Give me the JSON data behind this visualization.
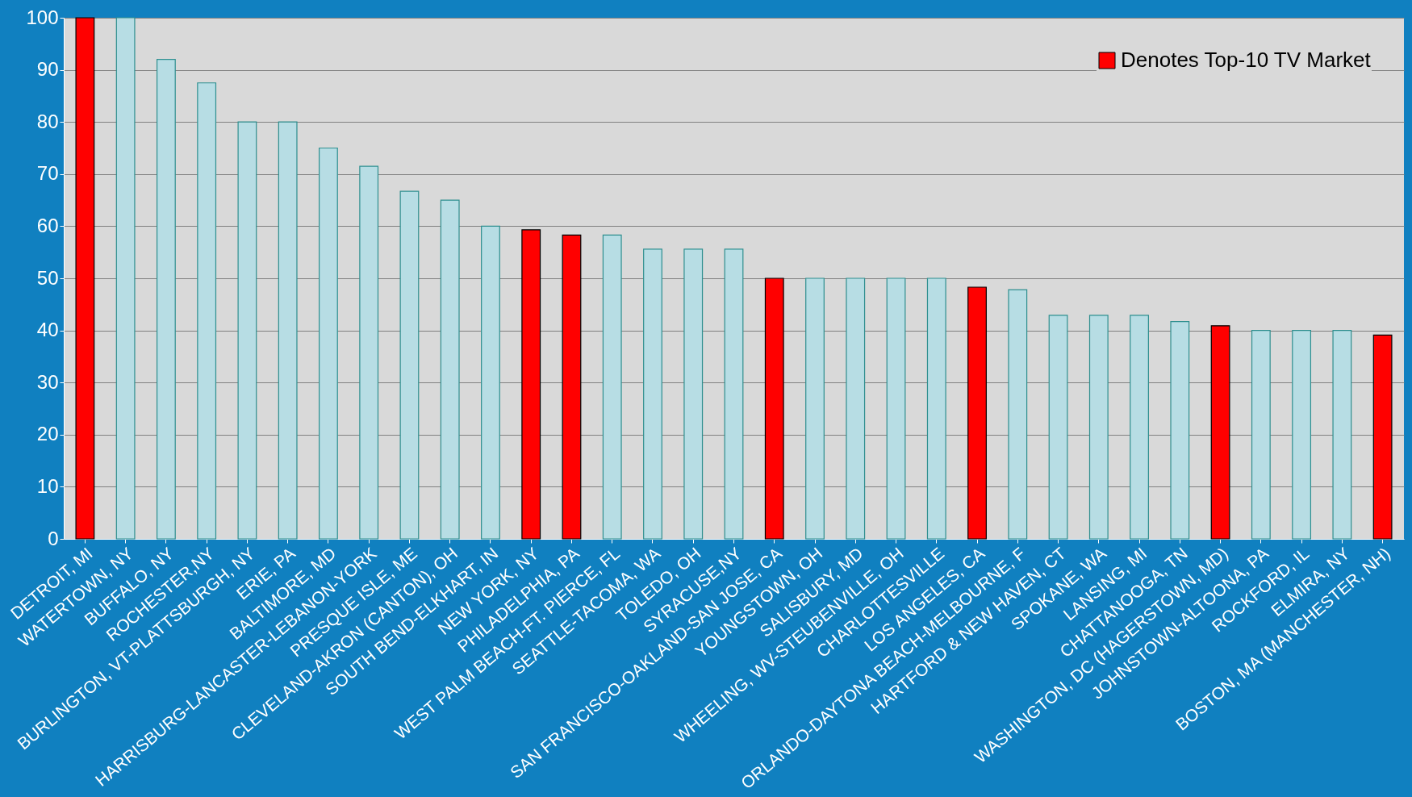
{
  "chart_data": {
    "type": "bar",
    "categories": [
      "DETROIT, MI",
      "WATERTOWN, NY",
      "BUFFALO, NY",
      "ROCHESTER,NY",
      "BURLINGTON, VT-PLATTSBURGH, NY",
      "ERIE, PA",
      "BALTIMORE, MD",
      "HARRISBURG-LANCASTER-LEBANON-YORK",
      "PRESQUE ISLE, ME",
      "CLEVELAND-AKRON (CANTON), OH",
      "SOUTH BEND-ELKHART, IN",
      "NEW YORK, NY",
      "PHILADELPHIA, PA",
      "WEST PALM BEACH-FT. PIERCE, FL",
      "SEATTLE-TACOMA, WA",
      "TOLEDO, OH",
      "SYRACUSE,NY",
      "SAN FRANCISCO-OAKLAND-SAN JOSE, CA",
      "YOUNGSTOWN, OH",
      "SALISBURY, MD",
      "WHEELING, WV-STEUBENVILLE, OH",
      "CHARLOTTESVILLE",
      "LOS ANGELES, CA",
      "ORLANDO-DAYTONA BEACH-MELBOURNE, F",
      "HARTFORD & NEW HAVEN, CT",
      "SPOKANE, WA",
      "LANSING, MI",
      "CHATTANOOGA, TN",
      "WASHINGTON, DC (HAGERSTOWN, MD)",
      "JOHNSTOWN-ALTOONA, PA",
      "ROCKFORD, IL",
      "ELMIRA, NY",
      "BOSTON, MA (MANCHESTER, NH)"
    ],
    "series": [
      {
        "name": "Denotes Top-10 TV Market",
        "color": "#ff0000",
        "values": [
          100,
          null,
          null,
          null,
          null,
          null,
          null,
          null,
          null,
          null,
          null,
          59.3,
          58.3,
          null,
          null,
          null,
          null,
          50,
          null,
          null,
          null,
          null,
          48.3,
          null,
          null,
          null,
          null,
          null,
          40.9,
          null,
          null,
          null,
          39.1
        ]
      },
      {
        "color": "#b7dde4",
        "values": [
          null,
          100,
          92,
          87.5,
          80,
          80,
          75,
          71.5,
          66.7,
          65,
          60,
          null,
          null,
          58.3,
          55.6,
          55.6,
          55.6,
          null,
          50,
          50,
          50,
          50,
          null,
          47.8,
          42.9,
          42.9,
          42.9,
          41.7,
          null,
          40,
          40,
          40,
          null
        ]
      }
    ],
    "ylim": [
      0,
      100
    ],
    "yticks": [
      0,
      10,
      20,
      30,
      40,
      50,
      60,
      70,
      80,
      90,
      100
    ],
    "grid": "y",
    "legend": "top right"
  }
}
